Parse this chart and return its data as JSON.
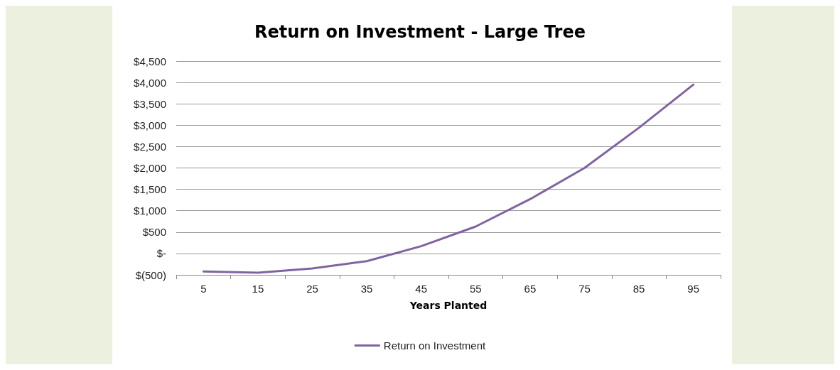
{
  "chart_data": {
    "type": "line",
    "title": "Return on Investment - Large Tree",
    "xlabel": "Years Planted",
    "categories": [
      "5",
      "15",
      "25",
      "35",
      "45",
      "55",
      "65",
      "75",
      "85",
      "95"
    ],
    "series": [
      {
        "name": "Return on Investment",
        "color": "#8064a2",
        "values": [
          -420,
          -450,
          -350,
          -180,
          170,
          630,
          1270,
          2000,
          2940,
          3950
        ]
      }
    ],
    "ylim": [
      -500,
      4500
    ],
    "yticks": [
      {
        "value": -500,
        "label": "$(500)"
      },
      {
        "value": 0,
        "label": "$-"
      },
      {
        "value": 500,
        "label": "$500"
      },
      {
        "value": 1000,
        "label": "$1,000"
      },
      {
        "value": 1500,
        "label": "$1,500"
      },
      {
        "value": 2000,
        "label": "$2,000"
      },
      {
        "value": 2500,
        "label": "$2,500"
      },
      {
        "value": 3000,
        "label": "$3,000"
      },
      {
        "value": 3500,
        "label": "$3,500"
      },
      {
        "value": 4000,
        "label": "$4,000"
      },
      {
        "value": 4500,
        "label": "$4,500"
      }
    ],
    "grid": "y",
    "legend": "bottom",
    "marker": "none",
    "line_style": "solid"
  }
}
